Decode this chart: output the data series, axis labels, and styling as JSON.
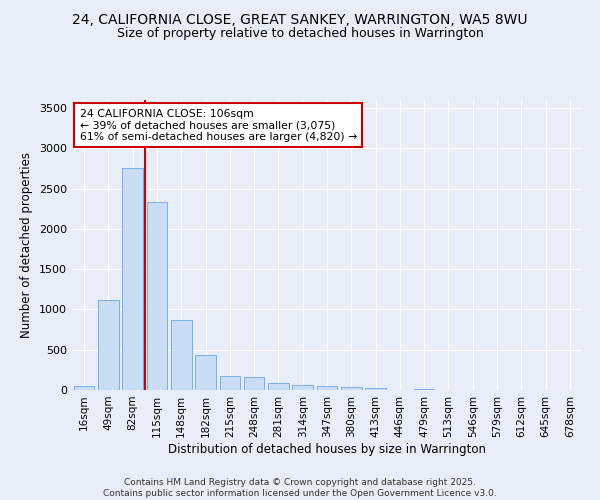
{
  "title": "24, CALIFORNIA CLOSE, GREAT SANKEY, WARRINGTON, WA5 8WU",
  "subtitle": "Size of property relative to detached houses in Warrington",
  "xlabel": "Distribution of detached houses by size in Warrington",
  "ylabel": "Number of detached properties",
  "categories": [
    "16sqm",
    "49sqm",
    "82sqm",
    "115sqm",
    "148sqm",
    "182sqm",
    "215sqm",
    "248sqm",
    "281sqm",
    "314sqm",
    "347sqm",
    "380sqm",
    "413sqm",
    "446sqm",
    "479sqm",
    "513sqm",
    "546sqm",
    "579sqm",
    "612sqm",
    "645sqm",
    "678sqm"
  ],
  "values": [
    50,
    1120,
    2760,
    2330,
    870,
    440,
    175,
    165,
    90,
    60,
    45,
    35,
    25,
    5,
    10,
    0,
    0,
    0,
    0,
    0,
    0
  ],
  "bar_color": "#c9ddf5",
  "bar_edgecolor": "#7aaee8",
  "vline_color": "#cc0000",
  "vline_x_index": 2.5,
  "annotation_line1": "24 CALIFORNIA CLOSE: 106sqm",
  "annotation_line2": "← 39% of detached houses are smaller (3,075)",
  "annotation_line3": "61% of semi-detached houses are larger (4,820) →",
  "annotation_box_facecolor": "#ffffff",
  "annotation_box_edgecolor": "#cc0000",
  "ylim": [
    0,
    3600
  ],
  "yticks": [
    0,
    500,
    1000,
    1500,
    2000,
    2500,
    3000,
    3500
  ],
  "background_color": "#e8eef8",
  "grid_color": "#ffffff",
  "footer_line1": "Contains HM Land Registry data © Crown copyright and database right 2025.",
  "footer_line2": "Contains public sector information licensed under the Open Government Licence v3.0."
}
